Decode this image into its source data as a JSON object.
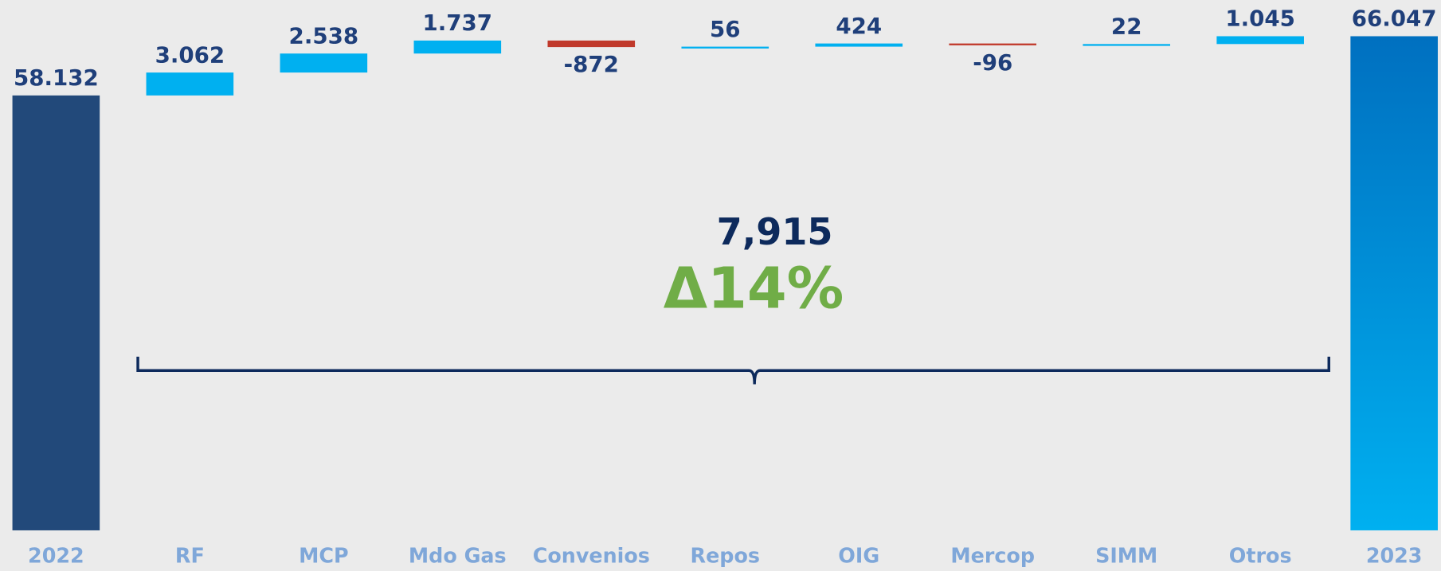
{
  "chart_data": {
    "type": "waterfall",
    "categories": [
      "2022",
      "RF",
      "MCP",
      "Mdo Gas",
      "Convenios",
      "Repos",
      "OIG",
      "Mercop",
      "SIMM",
      "Otros",
      "2023"
    ],
    "values": [
      58132,
      3062,
      2538,
      1737,
      -872,
      56,
      424,
      -96,
      22,
      1045,
      66047
    ],
    "value_labels": [
      "58.132",
      "3.062",
      "2.538",
      "1.737",
      "-872",
      "56",
      "424",
      "-96",
      "22",
      "1.045",
      "66.047"
    ],
    "measure": [
      "absolute",
      "relative",
      "relative",
      "relative",
      "relative",
      "relative",
      "relative",
      "relative",
      "relative",
      "relative",
      "total"
    ],
    "colors": {
      "absolute": "#22497a",
      "increase": "#00b0f0",
      "decrease": "#c0392b",
      "total": "#0a78c8"
    },
    "ylim": [
      0,
      70000
    ],
    "annotations": [
      "7,915",
      "Δ14%"
    ]
  }
}
